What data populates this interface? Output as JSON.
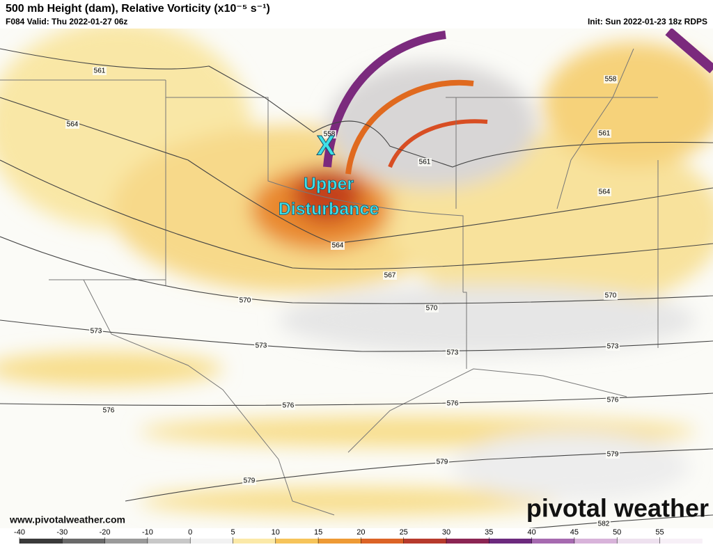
{
  "header": {
    "title": "500 mb Height (dam), Relative Vorticity (x10⁻⁵ s⁻¹)",
    "valid": "F084 Valid: Thu 2022-01-27 06z",
    "init": "Init: Sun 2022-01-23 18z RDPS"
  },
  "annotation": {
    "marker": "X",
    "lines": [
      "Upper",
      "Disturbance"
    ]
  },
  "contour_labels": [
    561,
    564,
    558,
    561,
    561,
    558,
    564,
    564,
    567,
    570,
    570,
    570,
    573,
    573,
    573,
    573,
    576,
    576,
    576,
    576,
    579,
    579,
    579,
    582
  ],
  "colorbar": {
    "ticks": [
      -40,
      -30,
      -20,
      -10,
      0,
      5,
      10,
      15,
      20,
      25,
      30,
      35,
      40,
      45,
      50,
      55
    ]
  },
  "footer": {
    "url": "www.pivotalweather.com",
    "logo": "pivotal weather"
  }
}
